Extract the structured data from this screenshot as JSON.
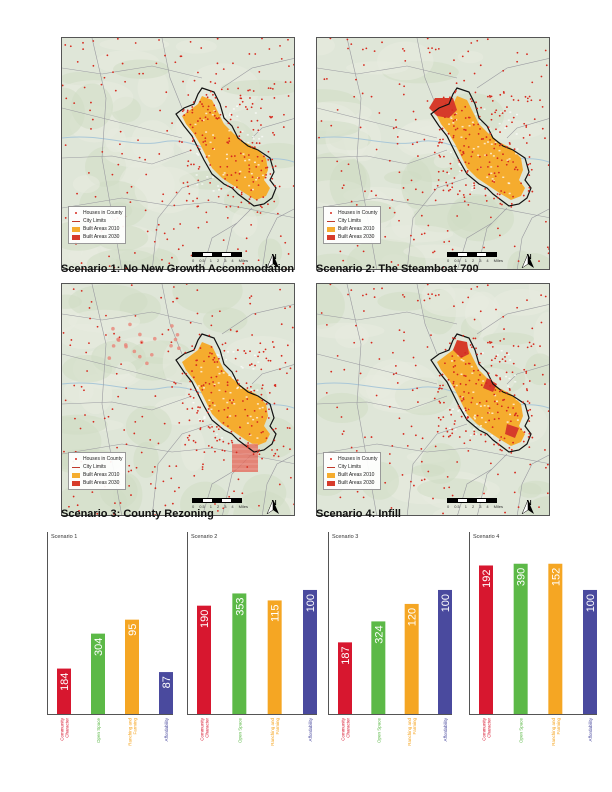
{
  "maps": [
    {
      "caption": "Scenario 1: No New Growth Accommodation",
      "variant": "none"
    },
    {
      "caption": "Scenario 2: The Steamboat 700",
      "variant": "west"
    },
    {
      "caption": "Scenario 3: County Rezoning",
      "variant": "county"
    },
    {
      "caption": "Scenario 4: Infill",
      "variant": "infill"
    }
  ],
  "legend": {
    "houses": "Houses in County",
    "city": "City Limits",
    "built2010": "Built Areas 2010",
    "built2030": "Built Areas 2030"
  },
  "scale": {
    "ticks": [
      "0",
      "0.5",
      "1",
      "2",
      "3",
      "4"
    ],
    "unit": "Miles"
  },
  "north_label": "N",
  "colors": {
    "built2010": "#f5ac2e",
    "built2030": "#d63b2a",
    "houses": "#d62a1e",
    "red": "#d7172f",
    "green": "#5cb947",
    "orange": "#f5a623",
    "blue": "#4a4a9e"
  },
  "chart_data": [
    {
      "type": "bar",
      "title": "Scenario 1",
      "categories": [
        "Community Character",
        "Open Space",
        "Ranching and Farming",
        "Affordability"
      ],
      "values": [
        184,
        304,
        95,
        87
      ],
      "bar_levels": [
        0.26,
        0.46,
        0.54,
        0.24
      ]
    },
    {
      "type": "bar",
      "title": "Scenario 2",
      "categories": [
        "Community Character",
        "Open Space",
        "Ranching and Farming",
        "Affordability"
      ],
      "values": [
        190,
        353,
        115,
        100
      ],
      "bar_levels": [
        0.62,
        0.69,
        0.65,
        0.71
      ]
    },
    {
      "type": "bar",
      "title": "Scenario 3",
      "categories": [
        "Community Character",
        "Open Space",
        "Ranching and Farming",
        "Affordability"
      ],
      "values": [
        187,
        324,
        120,
        100
      ],
      "bar_levels": [
        0.41,
        0.53,
        0.63,
        0.71
      ]
    },
    {
      "type": "bar",
      "title": "Scenario 4",
      "categories": [
        "Community Character",
        "Open Space",
        "Ranching and Farming",
        "Affordability"
      ],
      "values": [
        192,
        390,
        152,
        100
      ],
      "bar_levels": [
        0.85,
        0.86,
        0.86,
        0.71
      ]
    }
  ]
}
